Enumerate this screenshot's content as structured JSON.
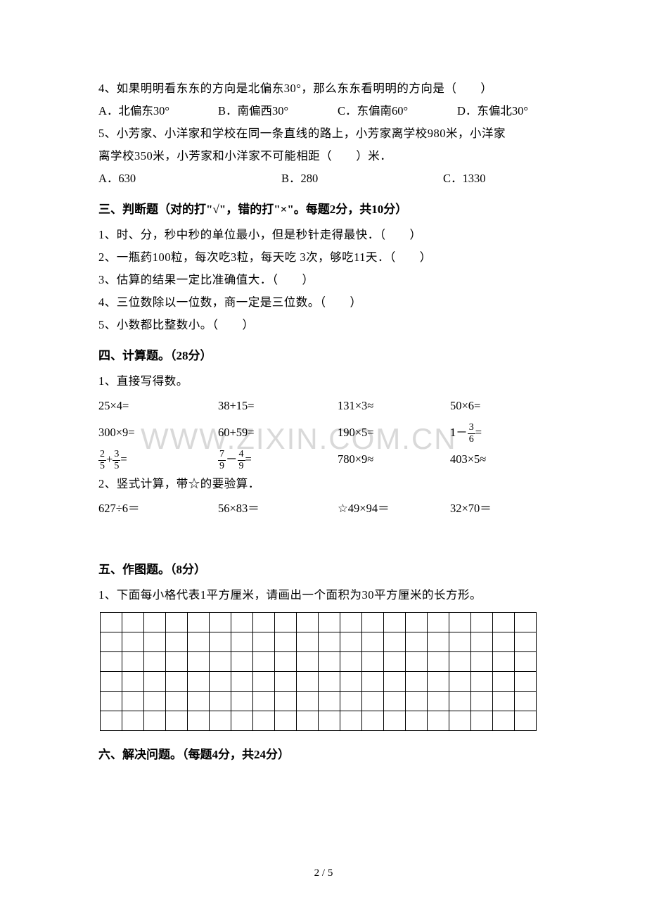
{
  "watermark": "WWW.ZIXIN.COM.CN",
  "page_number": "2 / 5",
  "q4": {
    "text": "4、如果明明看东东的方向是北偏东30°，那么东东看明明的方向是（　　）",
    "choices": {
      "a": "A．北偏东30°",
      "b": "B．南偏西30°",
      "c": "C．东偏南60°",
      "d": "D．东偏北30°"
    }
  },
  "q5": {
    "text1": "5、小芳家、小洋家和学校在同一条直线的路上，小芳家离学校980米，小洋家",
    "text2": "离学校350米，小芳家和小洋家不可能相距（　　）米．",
    "choices": {
      "a": "A．630",
      "b": "B．280",
      "c": "C．1330"
    }
  },
  "sec3": {
    "title": "三、判断题（对的打\"√\"，错的打\"×\"。每题2分，共10分）",
    "items": {
      "t1": "1、时、分，秒中秒的单位最小，但是秒针走得最快．（　　）",
      "t2": "2、一瓶药100粒，每次吃3粒，每天吃 3次，够吃11天．（　　）",
      "t3": "3、估算的结果一定比准确值大．（　　）",
      "t4": "4、三位数除以一位数，商一定是三位数。（　　）",
      "t5": "5、小数都比整数小。（　　）"
    }
  },
  "sec4": {
    "title": "四、计算题。（28分）",
    "p1": "1、直接写得数。",
    "row1": {
      "c1": "25×4=",
      "c2": "38+15=",
      "c3": "131×3≈",
      "c4": "50×6="
    },
    "row2": {
      "c1": "300×9=",
      "c2": "60+59=",
      "c3": "190×5="
    },
    "row3": {
      "c3": "780×9≈",
      "c4": "403×5≈"
    },
    "frac": {
      "r2c4_pre": "1－",
      "r2c4_num": "3",
      "r2c4_den": "6",
      "r2c4_eq": "=",
      "r3c1_a_num": "2",
      "r3c1_a_den": "5",
      "r3c1_plus": "+",
      "r3c1_b_num": "3",
      "r3c1_b_den": "5",
      "r3c1_eq": "=",
      "r3c2_a_num": "7",
      "r3c2_a_den": "9",
      "r3c2_minus": "－",
      "r3c2_b_num": "4",
      "r3c2_b_den": "9",
      "r3c2_eq": "="
    },
    "p2": "2、竖式计算，带☆的要验算．",
    "row4": {
      "c1": "627÷6＝",
      "c2": "56×83＝",
      "c3": "☆49×94＝",
      "c4": "32×70＝"
    }
  },
  "sec5": {
    "title": "五、作图题。（8分）",
    "p1": "1、下面每小格代表1平方厘米，请画出一个面积为30平方厘米的长方形。",
    "grid": {
      "rows": 6,
      "cols": 20
    }
  },
  "sec6": {
    "title": "六、解决问题。（每题4分，共24分）"
  }
}
